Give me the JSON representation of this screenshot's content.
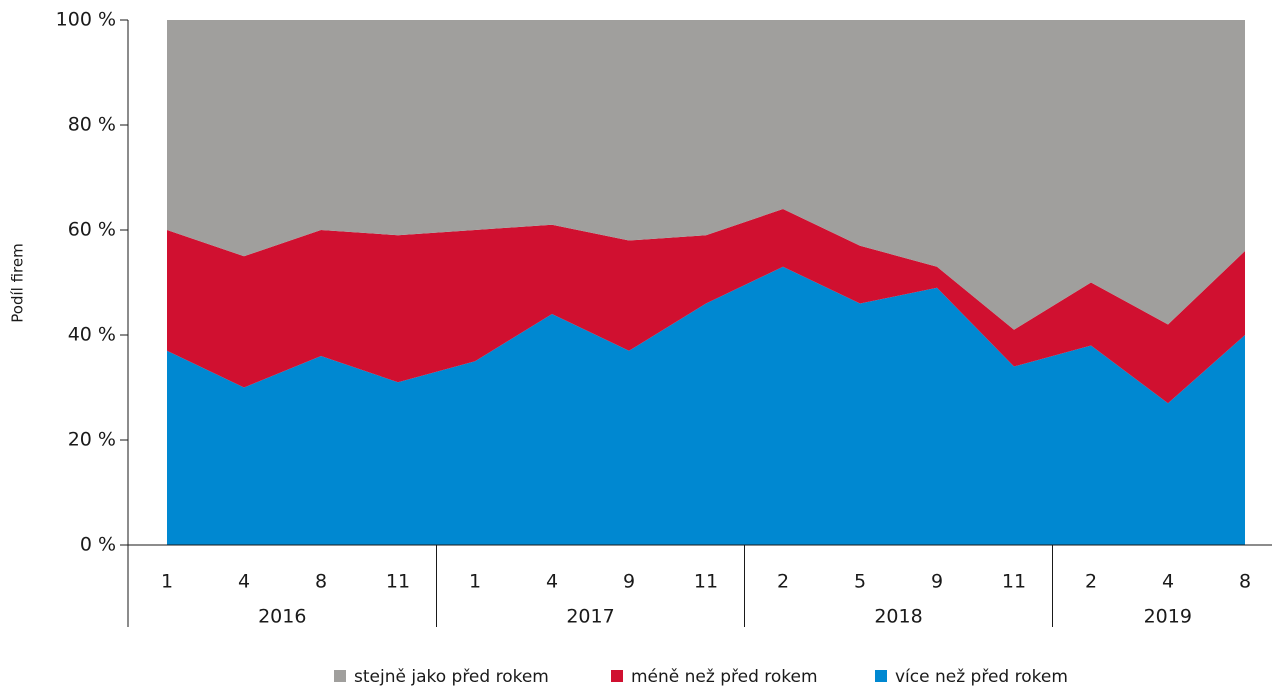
{
  "chart_data": {
    "type": "stacked_area",
    "y_label": "Podíl firem",
    "groups": [
      {
        "label": "2016",
        "categories": [
          "1",
          "4",
          "8",
          "11"
        ]
      },
      {
        "label": "2017",
        "categories": [
          "1",
          "4",
          "9",
          "11"
        ]
      },
      {
        "label": "2018",
        "categories": [
          "2",
          "5",
          "9",
          "11"
        ]
      },
      {
        "label": "2019",
        "categories": [
          "2",
          "4",
          "8"
        ]
      }
    ],
    "series": [
      {
        "name": "stejně jako před rokem",
        "color": "#a09f9d",
        "values": [
          40,
          45,
          40,
          41,
          40,
          39,
          42,
          41,
          36,
          43,
          47,
          59,
          50,
          58,
          44
        ]
      },
      {
        "name": "méně než před rokem",
        "color": "#d01030",
        "values": [
          23,
          25,
          24,
          28,
          25,
          17,
          21,
          13,
          11,
          11,
          4,
          7,
          12,
          15,
          16
        ]
      },
      {
        "name": "více než před rokem",
        "color": "#0088d1",
        "values": [
          37,
          30,
          36,
          31,
          35,
          44,
          37,
          46,
          53,
          46,
          49,
          34,
          38,
          27,
          40
        ]
      }
    ],
    "ylim": [
      0,
      100
    ],
    "yticks": [
      {
        "value": 0,
        "label": "0 %"
      },
      {
        "value": 20,
        "label": "20 %"
      },
      {
        "value": 40,
        "label": "40 %"
      },
      {
        "value": 60,
        "label": "60 %"
      },
      {
        "value": 80,
        "label": "80 %"
      },
      {
        "value": 100,
        "label": "100 %"
      }
    ]
  }
}
